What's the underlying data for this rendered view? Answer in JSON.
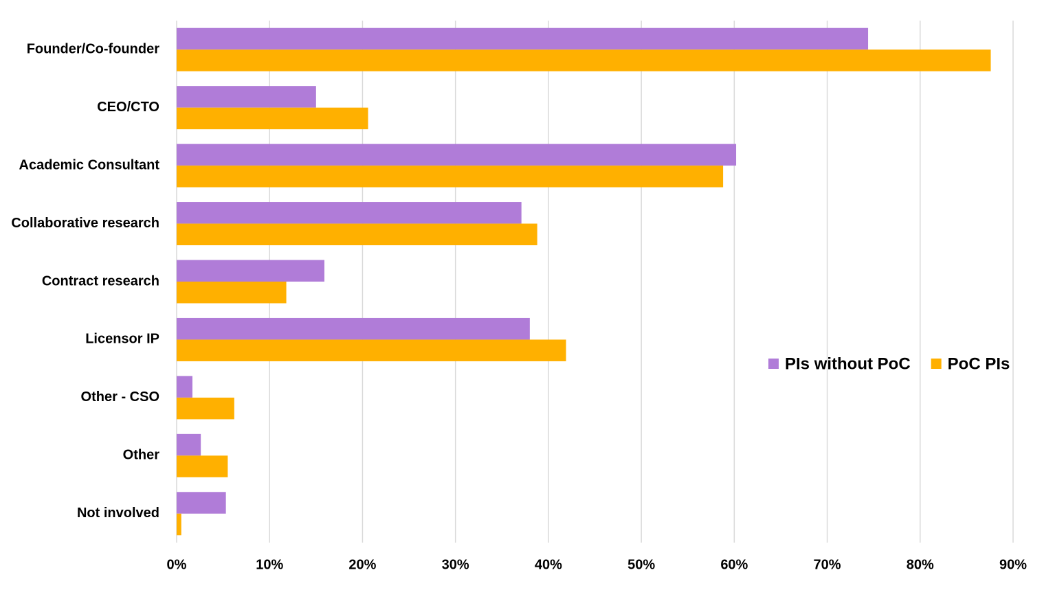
{
  "chart_data": {
    "type": "hbar",
    "categories": [
      "Founder/Co-founder",
      "CEO/CTO",
      "Academic Consultant",
      "Collaborative research",
      "Contract research",
      "Licensor IP",
      "Other - CSO",
      "Other",
      "Not involved"
    ],
    "series": [
      {
        "name": "PIs without PoC",
        "color": "#b07cd8",
        "values": [
          74.4,
          15.0,
          60.2,
          37.1,
          15.9,
          38.0,
          1.7,
          2.6,
          5.3
        ]
      },
      {
        "name": "PoC PIs",
        "color": "#ffb000",
        "values": [
          87.6,
          20.6,
          58.8,
          38.8,
          11.8,
          41.9,
          6.2,
          5.5,
          0.5
        ]
      }
    ],
    "xlim": [
      0,
      90
    ],
    "xticks": [
      {
        "value": 0,
        "label": "0%"
      },
      {
        "value": 10,
        "label": "10%"
      },
      {
        "value": 20,
        "label": "20%"
      },
      {
        "value": 30,
        "label": "30%"
      },
      {
        "value": 40,
        "label": "40%"
      },
      {
        "value": 50,
        "label": "50%"
      },
      {
        "value": 60,
        "label": "60%"
      },
      {
        "value": 70,
        "label": "70%"
      },
      {
        "value": 80,
        "label": "80%"
      },
      {
        "value": 90,
        "label": "90%"
      }
    ],
    "grid": true,
    "legend": "right"
  }
}
